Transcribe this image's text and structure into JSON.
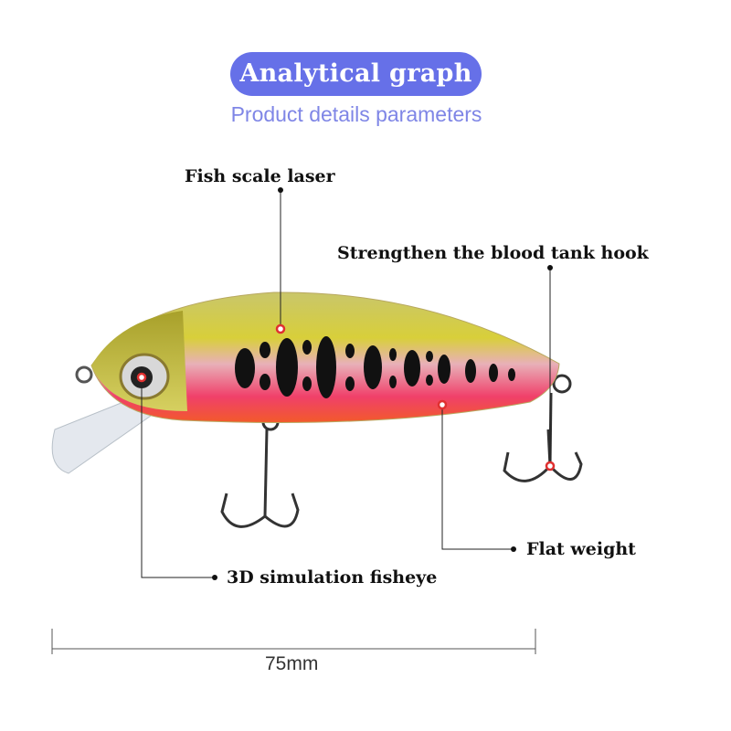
{
  "header": {
    "title": "Analytical graph",
    "subtitle": "Product details parameters"
  },
  "callouts": {
    "fish_scale": "Fish scale laser",
    "hook": "Strengthen the blood tank hook",
    "weight": "Flat weight",
    "eye": "3D simulation fisheye"
  },
  "dimension": {
    "length": "75mm"
  },
  "colors": {
    "accent": "#6670e8",
    "marker": "#e03030"
  }
}
